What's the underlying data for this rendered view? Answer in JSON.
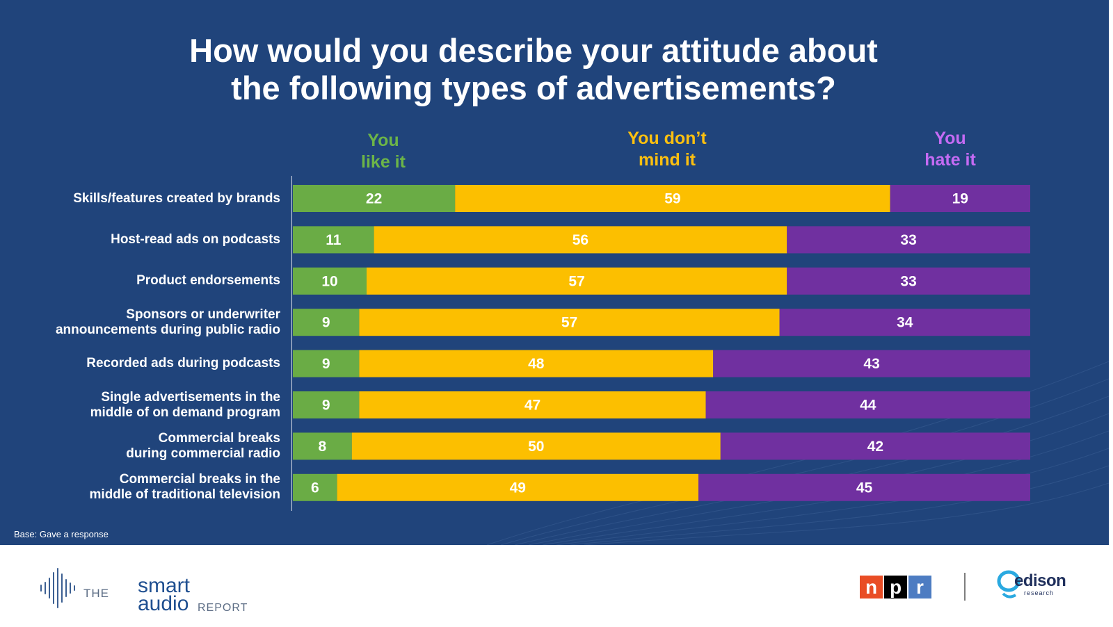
{
  "title_line1": "How would you describe your attitude about",
  "title_line2": "the following types of advertisements?",
  "column_headers": [
    {
      "line1": "You",
      "line2": "like it",
      "color": "#6cb548"
    },
    {
      "line1": "You don’t",
      "line2": "mind it",
      "color": "#fcc010"
    },
    {
      "line1": "You",
      "line2": "hate it",
      "color": "#c56bf4"
    }
  ],
  "chart_data": {
    "type": "bar",
    "orientation": "horizontal",
    "stacked": true,
    "categories": [
      "Skills/features created by brands",
      "Host-read ads on podcasts",
      "Product endorsements",
      "Sponsors or underwriter announcements during public radio",
      "Recorded ads during podcasts",
      "Single advertisements in the middle of on demand program",
      "Commercial breaks during commercial radio",
      "Commercial breaks in the middle of traditional television"
    ],
    "category_label_lines": [
      [
        "Skills/features created by brands"
      ],
      [
        "Host-read ads on podcasts"
      ],
      [
        "Product endorsements"
      ],
      [
        "Sponsors or underwriter",
        "announcements during public radio"
      ],
      [
        "Recorded ads during podcasts"
      ],
      [
        "Single advertisements in the",
        "middle of on demand program"
      ],
      [
        "Commercial breaks",
        "during commercial radio"
      ],
      [
        "Commercial breaks in the",
        "middle of traditional television"
      ]
    ],
    "series": [
      {
        "name": "You like it",
        "color": "#6aac45",
        "values": [
          22,
          11,
          10,
          9,
          9,
          9,
          8,
          6
        ]
      },
      {
        "name": "You don’t mind it",
        "color": "#fcbf00",
        "values": [
          59,
          56,
          57,
          57,
          48,
          47,
          50,
          49
        ]
      },
      {
        "name": "You hate it",
        "color": "#7030a0",
        "values": [
          19,
          33,
          33,
          34,
          43,
          44,
          42,
          45
        ]
      }
    ],
    "xlim": [
      0,
      100
    ],
    "data_labels": true,
    "grid": false
  },
  "base_note": "Base: Gave a response",
  "footer": {
    "smart_audio": {
      "the": "THE",
      "smart": "smart",
      "audio": "audio",
      "report": "REPORT"
    },
    "npr": {
      "letters": [
        "n",
        "p",
        "r"
      ],
      "colors": [
        "#e94d25",
        "#000000",
        "#4d7cc2"
      ]
    },
    "edison": {
      "word": "edison",
      "sub": "research"
    }
  }
}
